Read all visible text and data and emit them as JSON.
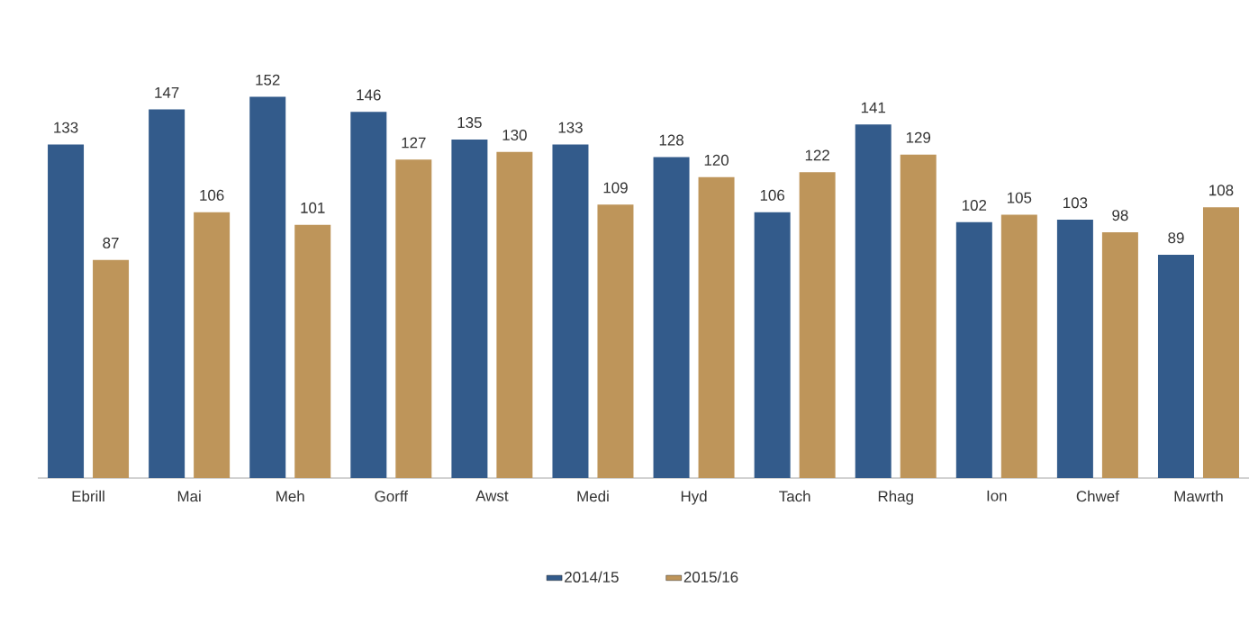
{
  "chart_data": {
    "type": "bar",
    "categories": [
      "Ebrill",
      "Mai",
      "Meh",
      "Gorff",
      "Awst",
      "Medi",
      "Hyd",
      "Tach",
      "Rhag",
      "Ion",
      "Chwef",
      "Mawrth"
    ],
    "series": [
      {
        "name": "2014/15",
        "color": "#335b8b",
        "values": [
          133,
          147,
          152,
          146,
          135,
          133,
          128,
          106,
          141,
          102,
          103,
          89
        ]
      },
      {
        "name": "2015/16",
        "color": "#be955a",
        "values": [
          87,
          106,
          101,
          127,
          130,
          109,
          120,
          122,
          129,
          105,
          98,
          108
        ]
      }
    ],
    "data_labels": true,
    "legend": "bottom"
  }
}
